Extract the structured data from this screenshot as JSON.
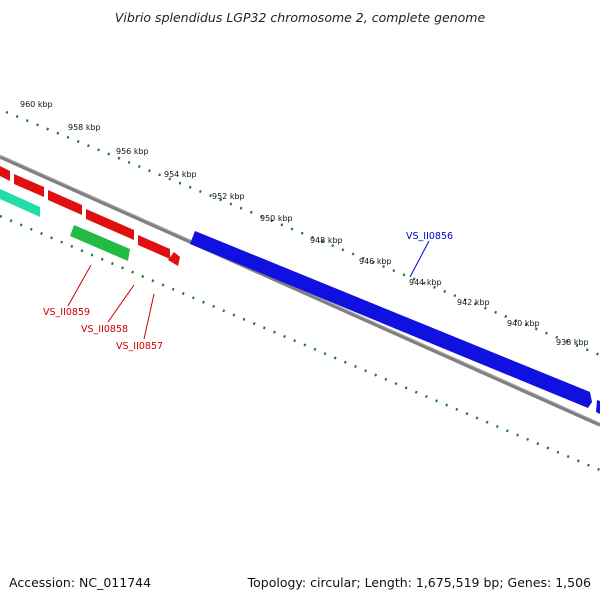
{
  "title": "Vibrio splendidus LGP32 chromosome 2, complete genome",
  "footer": {
    "accession": "Accession: NC_011744",
    "summary": "Topology: circular; Length: 1,675,519 bp; Genes: 1,506"
  },
  "colors": {
    "ruler": "#1e7a1e",
    "backbone": "#808080",
    "forward_gene": "#1010e0",
    "reverse_gene": "#e01010",
    "rna_gene": "#22bb44",
    "teal_gene": "#22ddaa",
    "red_label": "#cc0000",
    "blue_label": "#0000cc"
  },
  "ruler_labels": [
    "960 kbp",
    "958 kbp",
    "956 kbp",
    "954 kbp",
    "952 kbp",
    "950 kbp",
    "948 kbp",
    "946 kbp",
    "944 kbp",
    "942 kbp",
    "940 kbp",
    "938 kbp"
  ],
  "gene_labels": {
    "vs_ii0856": "VS_II0856",
    "vs_ii0859": "VS_II0859",
    "vs_ii0858": "VS_II0858",
    "vs_ii0857": "VS_II0857"
  }
}
